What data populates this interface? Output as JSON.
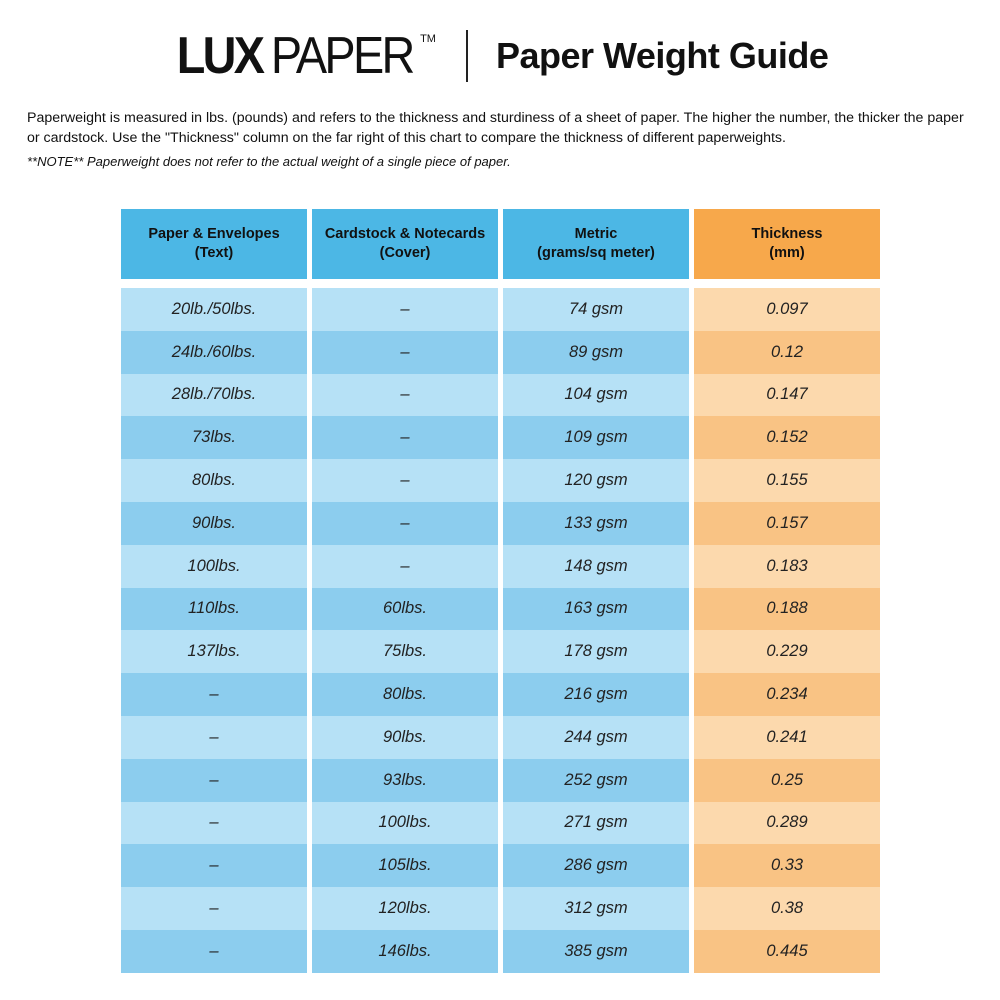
{
  "header": {
    "logo_bold": "LUX",
    "logo_light": "PAPER",
    "logo_tm": "TM",
    "title": "Paper Weight Guide"
  },
  "intro": "Paperweight is measured in lbs. (pounds) and refers to the thickness and sturdiness of a sheet of paper. The higher the number, the thicker the paper or cardstock. Use the \"Thickness\" column on the far right of this chart to compare the thickness of different paperweights.",
  "note": "**NOTE** Paperweight does not refer to the actual weight of a single piece of paper.",
  "colors": {
    "header_blue": "#4cb7e5",
    "row_blue_light": "#b6e1f6",
    "row_blue_dark": "#8ccdee",
    "header_orange": "#f7a84b",
    "row_orange_light": "#fcd9ad",
    "row_orange_dark": "#f9c384"
  },
  "table": {
    "columns": [
      {
        "line1": "Paper & Envelopes",
        "line2": "(Text)"
      },
      {
        "line1": "Cardstock & Notecards",
        "line2": "(Cover)"
      },
      {
        "line1": "Metric",
        "line2": "(grams/sq meter)"
      },
      {
        "line1": "Thickness",
        "line2": "(mm)"
      }
    ],
    "rows": [
      [
        "20lb./50lbs.",
        "–",
        "74 gsm",
        "0.097"
      ],
      [
        "24lb./60lbs.",
        "–",
        "89 gsm",
        "0.12"
      ],
      [
        "28lb./70lbs.",
        "–",
        "104 gsm",
        "0.147"
      ],
      [
        "73lbs.",
        "–",
        "109 gsm",
        "0.152"
      ],
      [
        "80lbs.",
        "–",
        "120 gsm",
        "0.155"
      ],
      [
        "90lbs.",
        "–",
        "133 gsm",
        "0.157"
      ],
      [
        "100lbs.",
        "–",
        "148 gsm",
        "0.183"
      ],
      [
        "110lbs.",
        "60lbs.",
        "163 gsm",
        "0.188"
      ],
      [
        "137lbs.",
        "75lbs.",
        "178 gsm",
        "0.229"
      ],
      [
        "–",
        "80lbs.",
        "216 gsm",
        "0.234"
      ],
      [
        "–",
        "90lbs.",
        "244 gsm",
        "0.241"
      ],
      [
        "–",
        "93lbs.",
        "252 gsm",
        "0.25"
      ],
      [
        "–",
        "100lbs.",
        "271 gsm",
        "0.289"
      ],
      [
        "–",
        "105lbs.",
        "286 gsm",
        "0.33"
      ],
      [
        "–",
        "120lbs.",
        "312 gsm",
        "0.38"
      ],
      [
        "–",
        "146lbs.",
        "385 gsm",
        "0.445"
      ]
    ]
  }
}
